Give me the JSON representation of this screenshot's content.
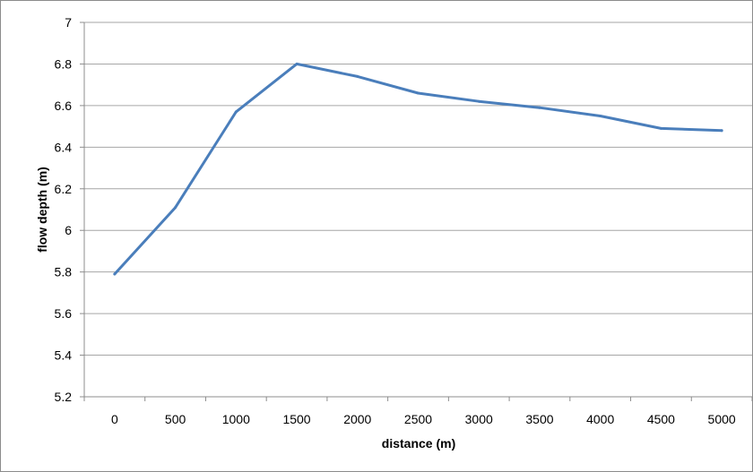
{
  "chart_data": {
    "type": "line",
    "title": "",
    "xlabel": "distance (m)",
    "ylabel": "flow  depth (m)",
    "x": [
      0,
      500,
      1000,
      1500,
      2000,
      2500,
      3000,
      3500,
      4000,
      4500,
      5000
    ],
    "categories": [
      "0",
      "500",
      "1000",
      "1500",
      "2000",
      "2500",
      "3000",
      "3500",
      "4000",
      "4500",
      "5000"
    ],
    "series": [
      {
        "values": [
          5.79,
          6.11,
          6.57,
          6.8,
          6.74,
          6.66,
          6.62,
          6.59,
          6.55,
          6.49,
          6.48
        ]
      }
    ],
    "ylim": [
      5.2,
      7
    ],
    "y_ticks": [
      "5.2",
      "5.4",
      "5.6",
      "5.8",
      "6",
      "6.2",
      "6.4",
      "6.6",
      "6.8",
      "7"
    ],
    "grid": "horizontal",
    "legend": "none",
    "colors": {
      "line": "#4a7ebb",
      "grid": "#a6a6a6",
      "axis": "#8c8c8c"
    }
  }
}
